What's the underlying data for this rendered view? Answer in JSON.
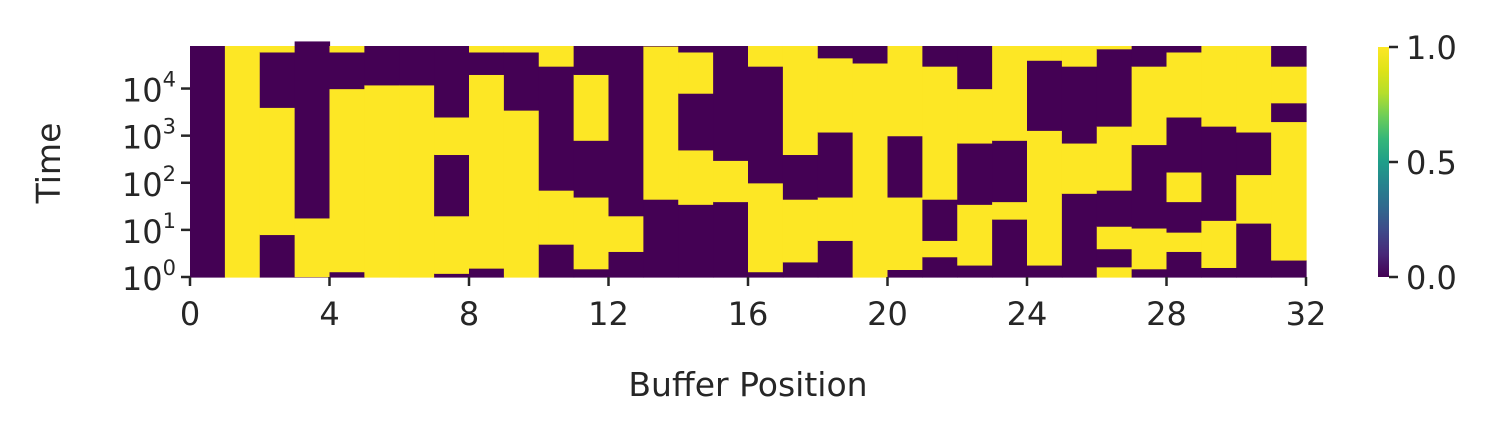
{
  "chart_data": {
    "type": "heatmap",
    "xlabel": "Buffer Position",
    "ylabel": "Time",
    "x_range": [
      0,
      32
    ],
    "x_ticks": [
      "0",
      "4",
      "8",
      "12",
      "16",
      "20",
      "24",
      "28",
      "32"
    ],
    "y_scale": "log",
    "y_range": [
      1,
      80000
    ],
    "y_ticks": [
      {
        "base": "10",
        "exp": "0",
        "value": 1
      },
      {
        "base": "10",
        "exp": "1",
        "value": 10
      },
      {
        "base": "10",
        "exp": "2",
        "value": 100
      },
      {
        "base": "10",
        "exp": "3",
        "value": 1000
      },
      {
        "base": "10",
        "exp": "4",
        "value": 10000
      }
    ],
    "colormap": "viridis",
    "colors": {
      "low": "#440154",
      "mid": "#21918c",
      "high": "#fde725"
    },
    "colorbar": {
      "range": [
        0.0,
        1.0
      ],
      "ticks": [
        "0.0",
        "0.5",
        "1.0"
      ]
    },
    "grid": false,
    "columns": [
      {
        "position": 0,
        "flips": [],
        "start": 0
      },
      {
        "position": 1,
        "flips": [],
        "start": 1
      },
      {
        "position": 2,
        "flips": [
          8,
          4000,
          60000
        ],
        "start": 0
      },
      {
        "position": 3,
        "flips": [
          1.02,
          18,
          100000
        ],
        "start": 0
      },
      {
        "position": 4,
        "flips": [
          1.3,
          10000,
          60000
        ],
        "start": 0
      },
      {
        "position": 5,
        "flips": [
          12000
        ],
        "start": 1
      },
      {
        "position": 6,
        "flips": [
          12000
        ],
        "start": 1
      },
      {
        "position": 7,
        "flips": [
          1.2,
          20,
          400,
          2500
        ],
        "start": 0
      },
      {
        "position": 8,
        "flips": [
          1.55,
          20000,
          60000
        ],
        "start": 0
      },
      {
        "position": 9,
        "flips": [
          3500,
          60000
        ],
        "start": 1
      },
      {
        "position": 10,
        "flips": [
          5,
          70,
          30000
        ],
        "start": 0
      },
      {
        "position": 11,
        "flips": [
          1.5,
          50,
          800,
          20000
        ],
        "start": 0
      },
      {
        "position": 12,
        "flips": [
          3.5,
          20
        ],
        "start": 0
      },
      {
        "position": 13,
        "flips": [
          45,
          80000
        ],
        "start": 0
      },
      {
        "position": 14,
        "flips": [
          35,
          500,
          8000,
          60000
        ],
        "start": 0
      },
      {
        "position": 15,
        "flips": [
          40,
          300
        ],
        "start": 0
      },
      {
        "position": 16,
        "flips": [
          1.3,
          100,
          30000
        ],
        "start": 0
      },
      {
        "position": 17,
        "flips": [
          2.1,
          45,
          400
        ],
        "start": 0
      },
      {
        "position": 18,
        "flips": [
          6,
          50,
          1200,
          45000
        ],
        "start": 0
      },
      {
        "position": 19,
        "flips": [
          35000
        ],
        "start": 1
      },
      {
        "position": 20,
        "flips": [
          1.45,
          50,
          1000
        ],
        "start": 0
      },
      {
        "position": 21,
        "flips": [
          2.7,
          6,
          45,
          30000
        ],
        "start": 0
      },
      {
        "position": 22,
        "flips": [
          1.8,
          35,
          700,
          10000
        ],
        "start": 0
      },
      {
        "position": 23,
        "flips": [
          17,
          40,
          800
        ],
        "start": 0
      },
      {
        "position": 24,
        "flips": [
          1.8,
          1300,
          40000
        ],
        "start": 0
      },
      {
        "position": 25,
        "flips": [
          60,
          700,
          30000
        ],
        "start": 0
      },
      {
        "position": 26,
        "flips": [
          1.65,
          4,
          12,
          70,
          1600,
          70000
        ],
        "start": 1
      },
      {
        "position": 27,
        "flips": [
          1.5,
          11,
          650,
          30000
        ],
        "start": 0
      },
      {
        "position": 28,
        "flips": [
          3.5,
          9,
          40,
          170,
          2500,
          60000
        ],
        "start": 0
      },
      {
        "position": 29,
        "flips": [
          1.6,
          16,
          1600
        ],
        "start": 0
      },
      {
        "position": 30,
        "flips": [
          14,
          150,
          1200
        ],
        "start": 0
      },
      {
        "position": 31,
        "flips": [
          2.3,
          2000,
          5000,
          30000
        ],
        "start": 0
      }
    ]
  }
}
